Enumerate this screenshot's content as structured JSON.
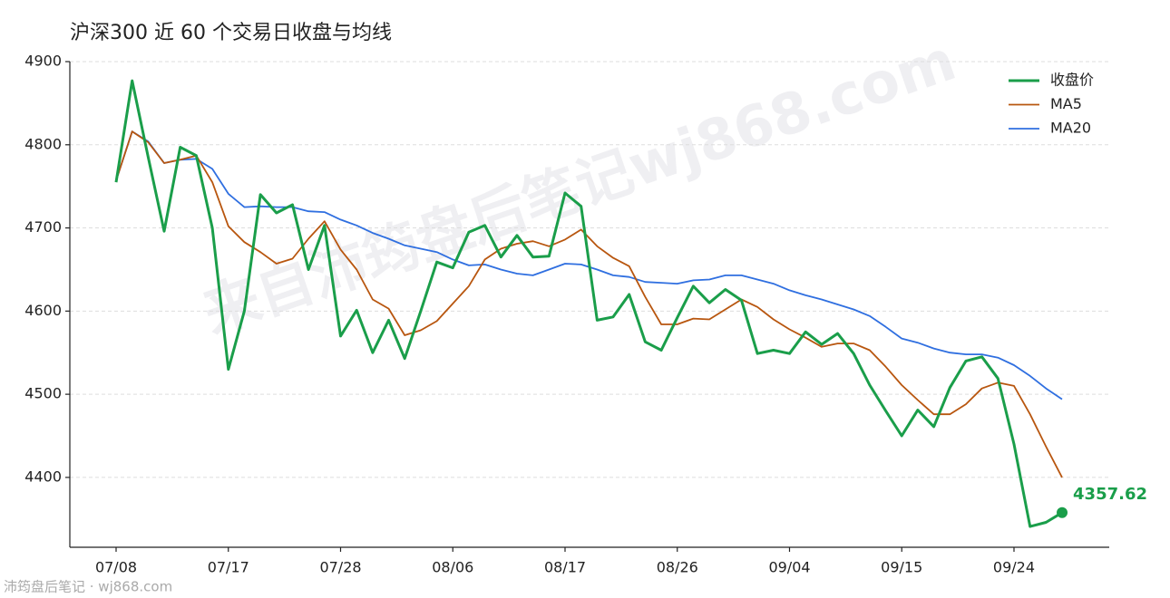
{
  "chart_data": {
    "type": "line",
    "title": "沪深300 近 60 个交易日收盘与均线",
    "watermark": "来自沛筠盘后笔记wj868.com",
    "footer": "沛筠盘后笔记 · wj868.com",
    "categories": [
      "07/08",
      null,
      null,
      null,
      null,
      null,
      null,
      "07/17",
      null,
      null,
      null,
      null,
      null,
      null,
      "07/28",
      null,
      null,
      null,
      null,
      null,
      null,
      "08/06",
      null,
      null,
      null,
      null,
      null,
      null,
      "08/17",
      null,
      null,
      null,
      null,
      null,
      null,
      "08/26",
      null,
      null,
      null,
      null,
      null,
      null,
      "09/04",
      null,
      null,
      null,
      null,
      null,
      null,
      "09/15",
      null,
      null,
      null,
      null,
      null,
      null,
      "09/24",
      null,
      null,
      null
    ],
    "series": [
      {
        "name": "收盘价",
        "color": "#1a9e4a",
        "width": 3,
        "values": [
          4755,
          4877,
          4785,
          4696,
          4797,
          4787,
          4700,
          4530,
          4600,
          4740,
          4718,
          4728,
          4650,
          4703,
          4570,
          4601,
          4550,
          4589,
          4543,
          4600,
          4659,
          4652,
          4695,
          4703,
          4665,
          4691,
          4665,
          4666,
          4742,
          4726,
          4589,
          4593,
          4620,
          4563,
          4553,
          4592,
          4630,
          4610,
          4626,
          4613,
          4549,
          4553,
          4549,
          4575,
          4560,
          4573,
          4549,
          4511,
          4480,
          4450,
          4481,
          4461,
          4508,
          4540,
          4545,
          4519,
          4440,
          4341,
          4346,
          4357.62
        ]
      },
      {
        "name": "MA5",
        "color": "#b8560f",
        "width": 1.8,
        "values": [
          4757,
          4816,
          4803,
          4778,
          4782,
          4787,
          4755,
          4702,
          4683,
          4671,
          4657,
          4663,
          4687,
          4708,
          4674,
          4650,
          4614,
          4603,
          4571,
          4577,
          4588,
          4609,
          4630,
          4662,
          4675,
          4681,
          4684,
          4678,
          4686,
          4698,
          4678,
          4664,
          4654,
          4617,
          4584,
          4584,
          4591,
          4590,
          4602,
          4614,
          4605,
          4590,
          4578,
          4568,
          4557,
          4561,
          4561,
          4553,
          4533,
          4511,
          4493,
          4476,
          4476,
          4488,
          4507,
          4514,
          4510,
          4476,
          4437,
          4400
        ]
      },
      {
        "name": "MA20",
        "color": "#2f6fe0",
        "width": 1.8,
        "values": [
          4757,
          4816,
          4804,
          4778,
          4782,
          4783,
          4771,
          4741,
          4725,
          4726,
          4725,
          4725,
          4720,
          4719,
          4710,
          4703,
          4694,
          4687,
          4679,
          4675,
          4671,
          4662,
          4655,
          4656,
          4650,
          4645,
          4643,
          4650,
          4657,
          4656,
          4650,
          4643,
          4641,
          4635,
          4634,
          4633,
          4637,
          4638,
          4643,
          4643,
          4638,
          4633,
          4625,
          4619,
          4614,
          4608,
          4602,
          4594,
          4581,
          4567,
          4562,
          4555,
          4550,
          4548,
          4548,
          4544,
          4535,
          4522,
          4507,
          4494
        ]
      }
    ],
    "ylim": [
      4316,
      4900
    ],
    "yticks": [
      4400,
      4500,
      4600,
      4700,
      4800,
      4900
    ],
    "grid": true,
    "legend": "upper-right"
  }
}
